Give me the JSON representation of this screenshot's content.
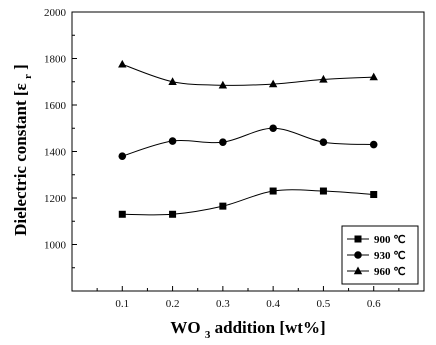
{
  "chart_data": {
    "type": "line",
    "xlabel": {
      "prefix": "WO",
      "subscript": "3",
      "suffix": " addition [wt%]"
    },
    "ylabel": {
      "prefix": "Dielectric constant [ε",
      "subscript": "r",
      "suffix": "]"
    },
    "x": [
      0.1,
      0.2,
      0.3,
      0.4,
      0.5,
      0.6
    ],
    "xlim": [
      0.0,
      0.7
    ],
    "ylim": [
      800,
      2000
    ],
    "x_ticks": [
      0.1,
      0.2,
      0.3,
      0.4,
      0.5,
      0.6
    ],
    "x_tick_labels": [
      "0.1",
      "0.2",
      "0.3",
      "0.4",
      "0.5",
      "0.6"
    ],
    "y_ticks": [
      1000,
      1200,
      1400,
      1600,
      1800,
      2000
    ],
    "y_tick_labels": [
      "1000",
      "1200",
      "1400",
      "1600",
      "1800",
      "2000"
    ],
    "grid": false,
    "legend_position": "bottom-right",
    "series": [
      {
        "name": "900 ℃",
        "marker": "square",
        "values": [
          1130,
          1130,
          1165,
          1230,
          1230,
          1215
        ]
      },
      {
        "name": "930 ℃",
        "marker": "circle",
        "values": [
          1380,
          1445,
          1440,
          1500,
          1440,
          1430
        ]
      },
      {
        "name": "960 ℃",
        "marker": "triangle",
        "values": [
          1775,
          1700,
          1685,
          1690,
          1710,
          1720
        ]
      }
    ]
  }
}
